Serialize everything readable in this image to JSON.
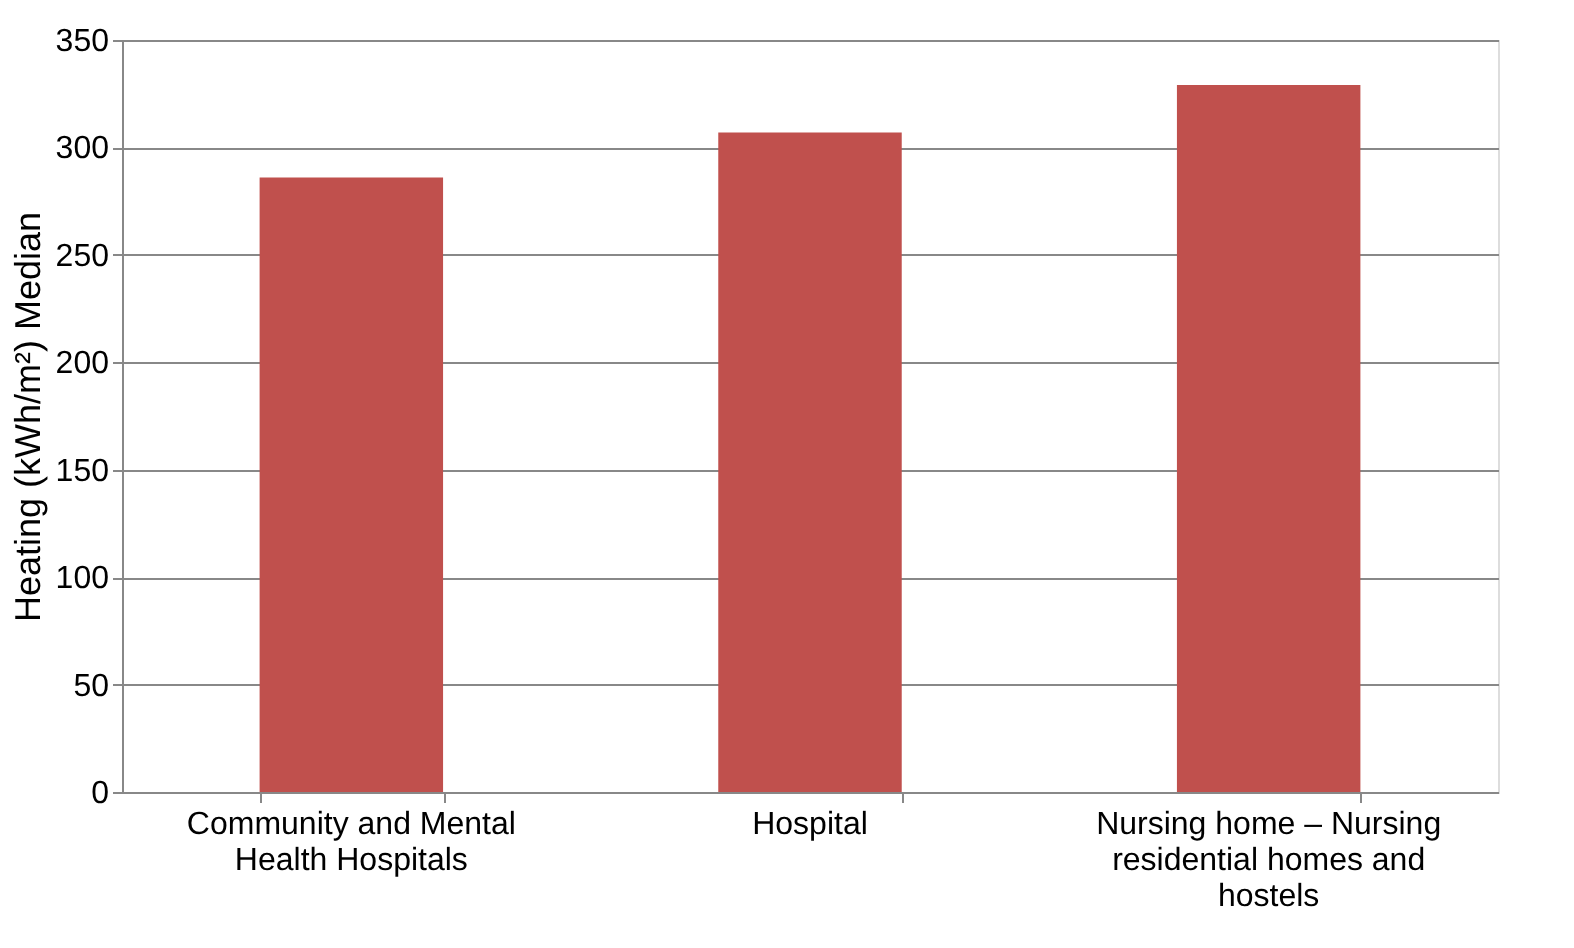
{
  "chart_data": {
    "type": "bar",
    "categories": [
      "Community and Mental Health Hospitals",
      "Hospital",
      "Nursing home – Nursing residential homes and hostels"
    ],
    "values": [
      286,
      307,
      329
    ],
    "color": "#c0504d",
    "ylabel": "Heating (kWh/m²) Median",
    "ylim": [
      0,
      350
    ],
    "yticks": [
      0,
      50,
      100,
      150,
      200,
      250,
      300,
      350
    ],
    "grid": "y"
  }
}
